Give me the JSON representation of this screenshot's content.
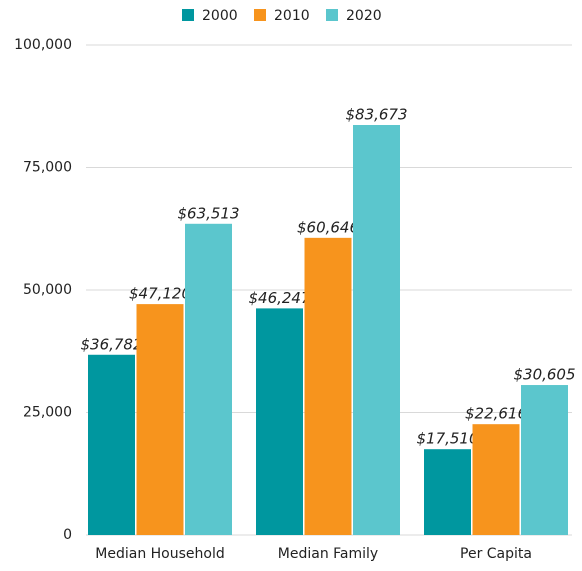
{
  "chart_data": {
    "type": "bar",
    "categories": [
      "Median Household",
      "Median Family",
      "Per Capita"
    ],
    "series": [
      {
        "name": "2000",
        "color": "#00979f",
        "values": [
          36782,
          46247,
          17510
        ],
        "value_labels": [
          "$36,782",
          "$46,247",
          "$17,510"
        ]
      },
      {
        "name": "2010",
        "color": "#f7941d",
        "values": [
          47120,
          60646,
          22616
        ],
        "value_labels": [
          "$47,120",
          "$60,646",
          "$22,616"
        ]
      },
      {
        "name": "2020",
        "color": "#5bc6cd",
        "values": [
          63513,
          83673,
          30605
        ],
        "value_labels": [
          "$63,513",
          "$83,673",
          "$30,605"
        ]
      }
    ],
    "ylim": [
      0,
      100000
    ],
    "yticks": [
      0,
      {
        "value": 25000,
        "label": "25,000"
      },
      {
        "value": 50000,
        "label": "50,000"
      },
      {
        "value": 75000,
        "label": "75,000"
      },
      {
        "value": 100000,
        "label": "100,000"
      }
    ],
    "grid": true,
    "legend": "top"
  }
}
